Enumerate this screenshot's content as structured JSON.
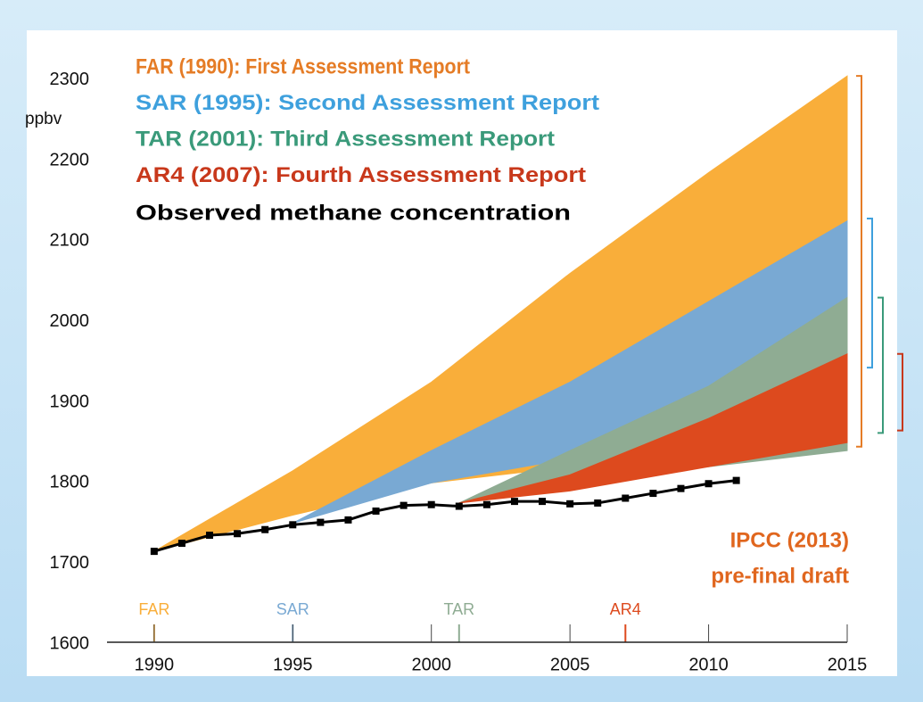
{
  "chart_data": {
    "type": "band",
    "y_unit": "ppbv",
    "annotation": [
      "IPCC (2013)",
      "pre-final draft"
    ],
    "annotation_color": "#e0661e",
    "xlim": [
      1988.3,
      2015
    ],
    "xticks": [
      1990,
      1995,
      2000,
      2005,
      2010,
      2015
    ],
    "ylim": [
      1600,
      2355
    ],
    "yticks": [
      1600,
      1700,
      1800,
      1900,
      2000,
      2100,
      2200,
      2300
    ],
    "bands": [
      {
        "name": "FAR (1990): First Assessment Report",
        "short": "FAR",
        "year": 1990,
        "color": "#f9ae3a",
        "label_color": "#e57c26",
        "x": [
          1990,
          1995,
          2000,
          2005,
          2010,
          2015
        ],
        "upper": [
          1715,
          1815,
          1925,
          2060,
          2185,
          2305
        ],
        "lower": [
          1715,
          1760,
          1800,
          1820,
          1835,
          1845
        ],
        "range": [
          1845,
          2305
        ]
      },
      {
        "name": "SAR (1995): Second Assessment Report",
        "short": "SAR",
        "year": 1995,
        "color": "#79a9d3",
        "label_color": "#3ea0dd",
        "x": [
          1995,
          2000,
          2005,
          2010,
          2015
        ],
        "upper": [
          1750,
          1840,
          1925,
          2025,
          2125
        ],
        "lower": [
          1750,
          1800,
          1830,
          1845,
          1860
        ],
        "range": [
          1943,
          2128
        ]
      },
      {
        "name": "TAR (2001): Third Assessment Report",
        "short": "TAR",
        "year": 2001,
        "color": "#8fac93",
        "label_color": "#3a9a7a",
        "x": [
          2001,
          2005,
          2010,
          2015
        ],
        "upper": [
          1775,
          1840,
          1920,
          2030
        ],
        "lower": [
          1775,
          1800,
          1820,
          1840
        ],
        "range": [
          1862,
          2030
        ]
      },
      {
        "name": "AR4 (2007): Fourth Assessment Report",
        "short": "AR4",
        "year": 2007,
        "color": "#dd4a1e",
        "label_color": "#c8381b",
        "x": [
          2001,
          2005,
          2010,
          2015
        ],
        "upper": [
          1775,
          1810,
          1880,
          1960
        ],
        "lower": [
          1775,
          1790,
          1820,
          1850
        ],
        "range": [
          1865,
          1960
        ]
      }
    ],
    "series": [
      {
        "name": "Observed methane concentration",
        "color": "#000000",
        "x": [
          1990,
          1991,
          1992,
          1993,
          1994,
          1995,
          1996,
          1997,
          1998,
          1999,
          2000,
          2001,
          2002,
          2003,
          2004,
          2005,
          2006,
          2007,
          2008,
          2009,
          2010,
          2011
        ],
        "values": [
          1715,
          1725,
          1735,
          1737,
          1742,
          1748,
          1751,
          1754,
          1765,
          1772,
          1773,
          1771,
          1773,
          1777,
          1777,
          1774,
          1775,
          1781,
          1787,
          1793,
          1799,
          1803
        ]
      }
    ]
  }
}
